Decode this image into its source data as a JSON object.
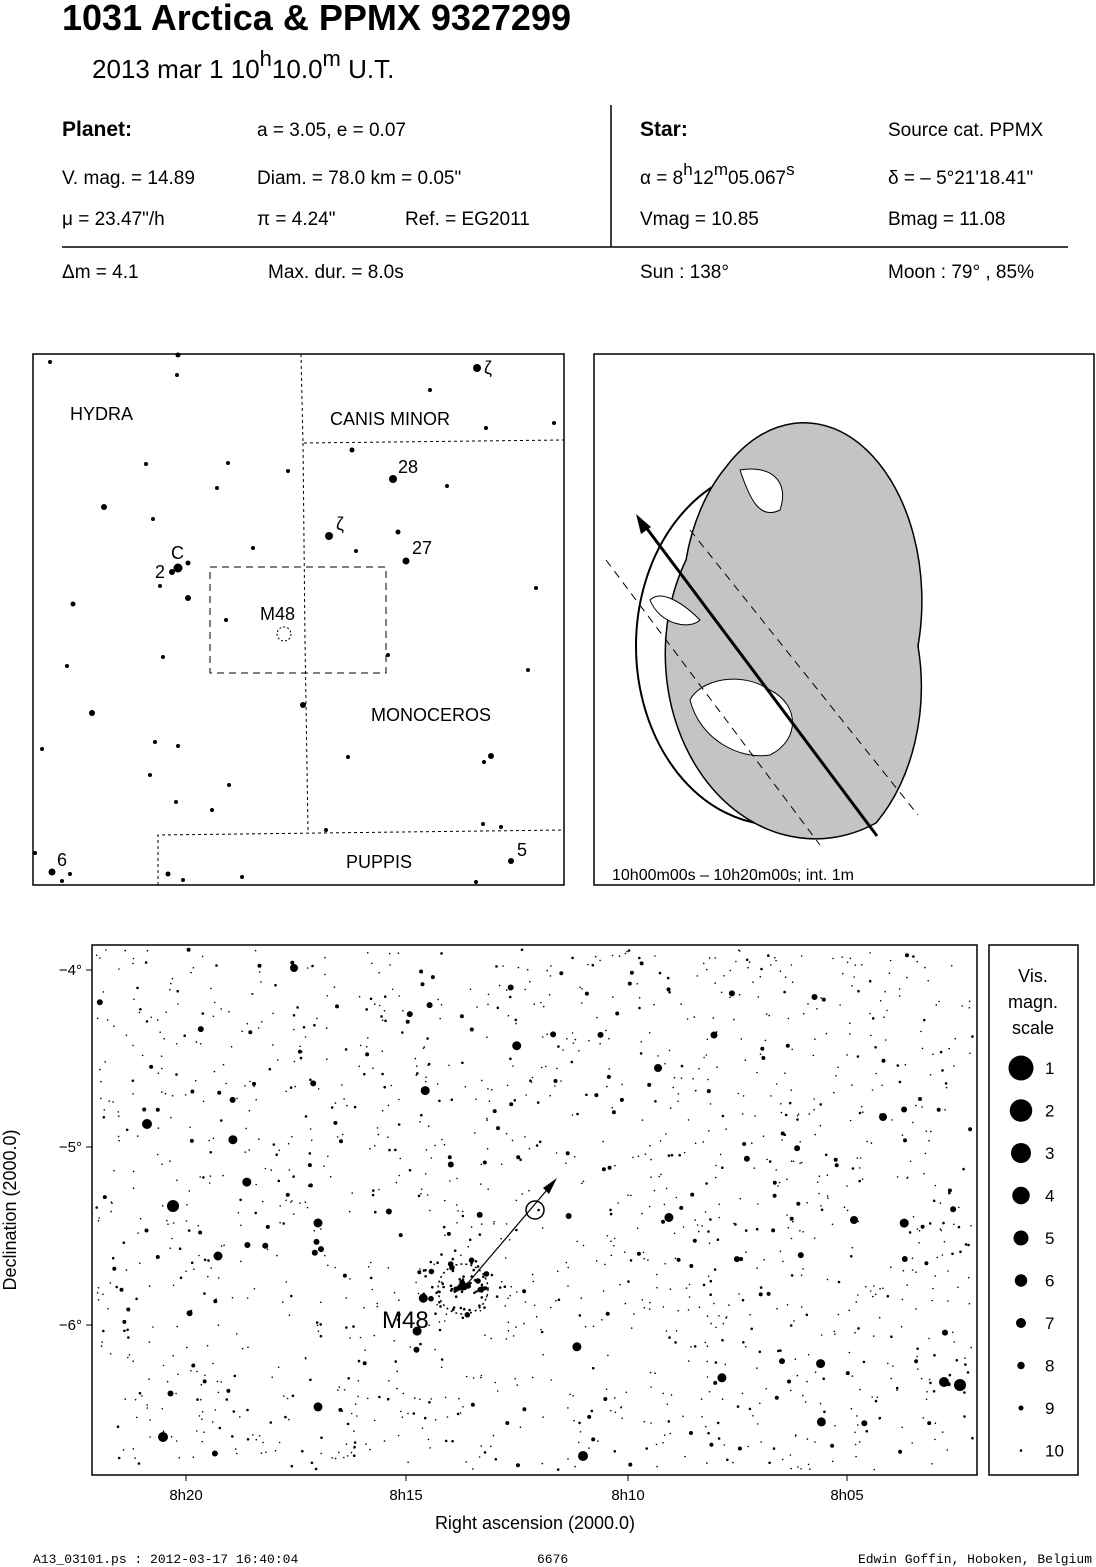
{
  "header": {
    "title": "1031 Arctica  &  PPMX 9327299",
    "date": {
      "day": "2013 mar  1  10",
      "hour_unit": "h",
      "minutes": "10.0",
      "minute_unit": "m",
      "scale": " U.T."
    }
  },
  "planet": {
    "label": "Planet:",
    "orbit": "a = 3.05, e = 0.07",
    "vmag": "V. mag. = 14.89",
    "diameter": "Diam. = 78.0 km = 0.05\"",
    "motion": "μ =  23.47\"/h",
    "parallax": "π =  4.24\"",
    "reference": "Ref. = EG2011"
  },
  "star": {
    "label": "Star:",
    "source": "Source cat.  PPMX",
    "ra": {
      "prefix": "α =  8",
      "h": "h",
      "min": "12",
      "m": "m",
      "sec": "05.067",
      "s": "s"
    },
    "dec": "δ = – 5°21'18.41\"",
    "vmag": "Vmag = 10.85",
    "bmag": "Bmag = 11.08"
  },
  "event": {
    "delta_mag": "Δm = 4.1",
    "max_duration": "Max. dur. = 8.0s",
    "sun": "Sun : 138°",
    "moon": "Moon :  79° , 85%"
  },
  "finder": {
    "labels": [
      {
        "text": "ζ"
      },
      {
        "text": "HYDRA"
      },
      {
        "text": "CANIS MINOR"
      },
      {
        "text": "28"
      },
      {
        "text": "ζ"
      },
      {
        "text": "27"
      },
      {
        "text": "C"
      },
      {
        "text": "2"
      },
      {
        "text": "M48"
      },
      {
        "text": "MONOCEROS"
      },
      {
        "text": "6"
      },
      {
        "text": "PUPPIS"
      },
      {
        "text": "5"
      }
    ]
  },
  "globe": {
    "caption": "10h00m00s – 10h20m00s; int.  1m"
  },
  "sky_chart": {
    "y_ticks": [
      "−4°",
      "−5°",
      "−6°"
    ],
    "x_ticks": [
      "8h20",
      "8h15",
      "8h10",
      "8h05"
    ],
    "y_title": "Declination (2000.0)",
    "x_title": "Right ascension (2000.0)",
    "cluster_label": "M48",
    "legend": {
      "title": [
        "Vis.",
        "magn.",
        "scale"
      ],
      "magnitudes": [
        1,
        2,
        3,
        4,
        5,
        6,
        7,
        8,
        9,
        10
      ]
    }
  },
  "footer": {
    "file": "A13_03101.ps : 2012-03-17 16:40:04",
    "number": "6676",
    "author": "Edwin Goffin, Hoboken, Belgium"
  }
}
